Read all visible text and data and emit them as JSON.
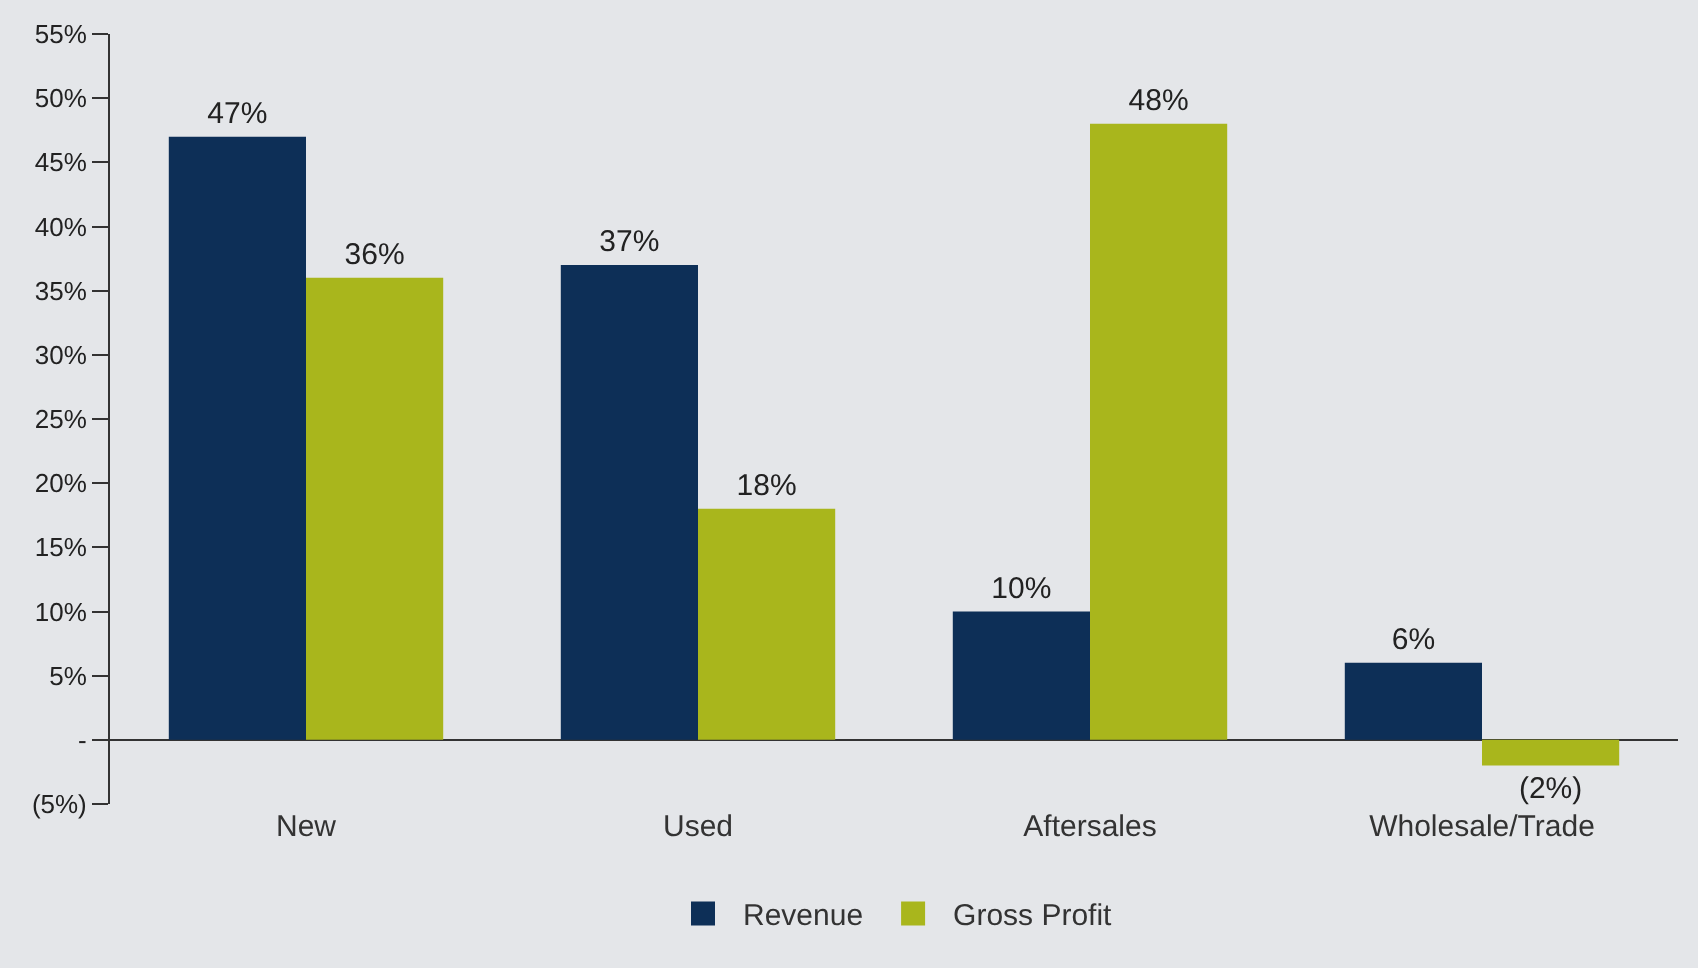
{
  "chart_data": {
    "type": "bar",
    "categories": [
      "New",
      "Used",
      "Aftersales",
      "Wholesale/Trade"
    ],
    "series": [
      {
        "name": "Revenue",
        "color": "#0d2f57",
        "values": [
          47,
          37,
          10,
          6
        ],
        "value_labels": [
          "47%",
          "37%",
          "10%",
          "6%"
        ]
      },
      {
        "name": "Gross Profit",
        "color": "#a9b61c",
        "values": [
          36,
          18,
          48,
          -2
        ],
        "value_labels": [
          "36%",
          "18%",
          "48%",
          "(2%)"
        ]
      }
    ],
    "ylim": [
      -5,
      55
    ],
    "yticks": [
      {
        "value": -5,
        "label": "(5%)"
      },
      {
        "value": 0,
        "label": "-"
      },
      {
        "value": 5,
        "label": "5%"
      },
      {
        "value": 10,
        "label": "10%"
      },
      {
        "value": 15,
        "label": "15%"
      },
      {
        "value": 20,
        "label": "20%"
      },
      {
        "value": 25,
        "label": "25%"
      },
      {
        "value": 30,
        "label": "30%"
      },
      {
        "value": 35,
        "label": "35%"
      },
      {
        "value": 40,
        "label": "40%"
      },
      {
        "value": 45,
        "label": "45%"
      },
      {
        "value": 50,
        "label": "50%"
      },
      {
        "value": 55,
        "label": "55%"
      }
    ],
    "grid": false,
    "legend": "bottom"
  }
}
